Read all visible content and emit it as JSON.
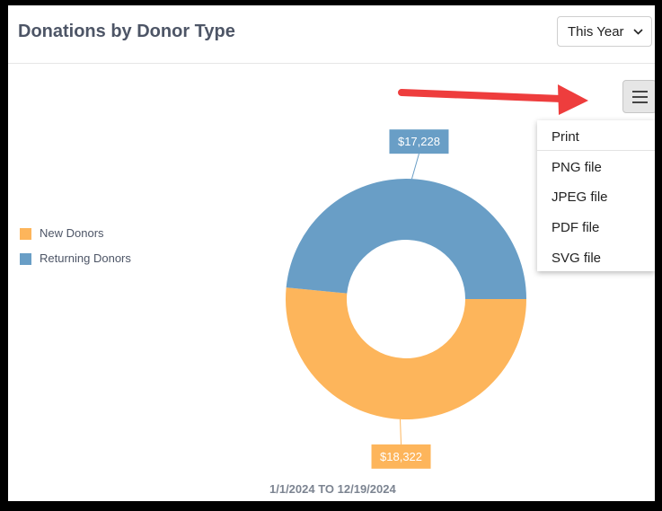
{
  "header": {
    "title": "Donations by Donor Type",
    "period_select": {
      "selected": "This Year"
    }
  },
  "export_menu": {
    "items": [
      "Print",
      "PNG file",
      "JPEG file",
      "PDF file",
      "SVG file"
    ]
  },
  "colors": {
    "new_donors": "#fdb55b",
    "returning_donors": "#699ec6",
    "annotation_arrow": "#ee3d3d",
    "title_text": "#4d5566"
  },
  "icons": {
    "menu": "hamburger-icon",
    "select": "chevron-down-icon",
    "annotation": "red-arrow-icon"
  },
  "chart_data": {
    "type": "pie",
    "variant": "donut",
    "title": "Donations by Donor Type",
    "subtitle": "1/1/2024 TO 12/19/2024",
    "legend_position": "left",
    "series": [
      {
        "name": "New Donors",
        "value": 18322,
        "label": "$18,322"
      },
      {
        "name": "Returning Donors",
        "value": 17228,
        "label": "$17,228"
      }
    ]
  }
}
